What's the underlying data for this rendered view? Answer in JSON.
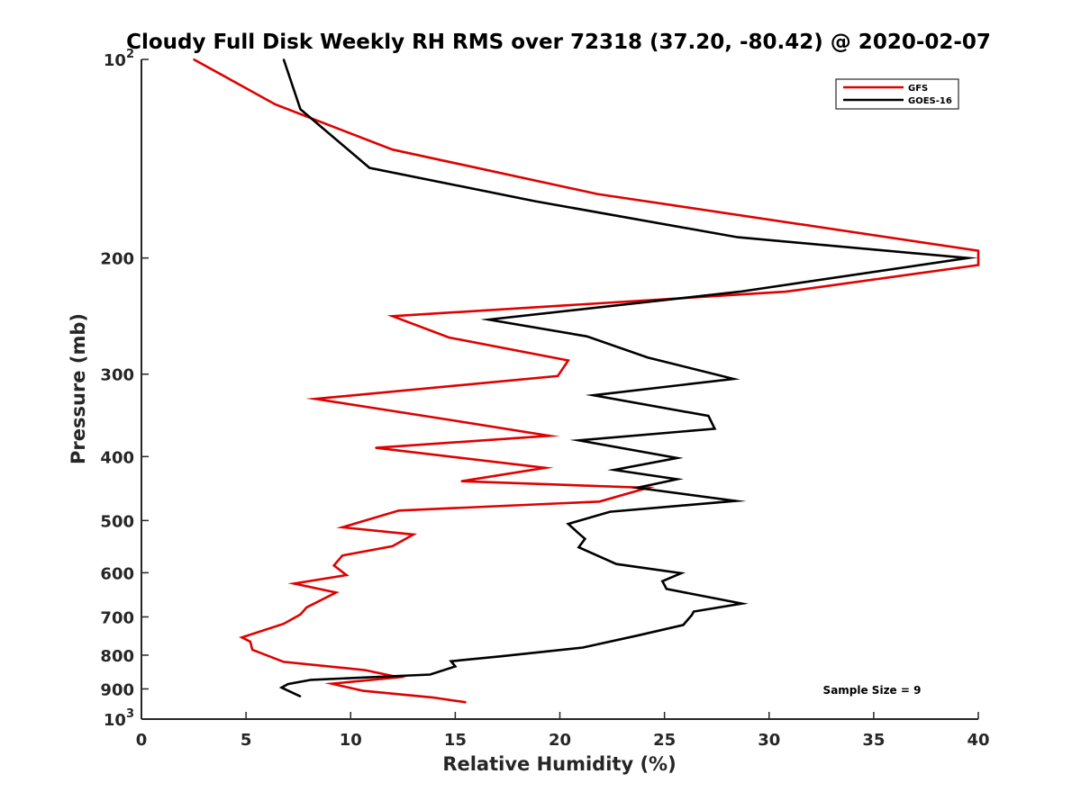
{
  "chart_data": {
    "type": "line",
    "title": "Cloudy Full Disk Weekly RH RMS over 72318 (37.20, -80.42) @ 2020-02-07",
    "xlabel": "Relative Humidity (%)",
    "ylabel": "Pressure (mb)",
    "xlim": [
      0,
      40
    ],
    "ylim": [
      100,
      1000
    ],
    "yscale": "log",
    "y_reversed": true,
    "grid": false,
    "legend_position": "top-right",
    "x_ticks": [
      "0",
      "5",
      "10",
      "15",
      "20",
      "25",
      "30",
      "35",
      "40"
    ],
    "y_ticks": [
      {
        "value": 100,
        "base": "10",
        "exp": "2"
      },
      {
        "value": 200,
        "label": "200"
      },
      {
        "value": 300,
        "label": "300"
      },
      {
        "value": 400,
        "label": "400"
      },
      {
        "value": 500,
        "label": "500"
      },
      {
        "value": 600,
        "label": "600"
      },
      {
        "value": 700,
        "label": "700"
      },
      {
        "value": 800,
        "label": "800"
      },
      {
        "value": 900,
        "label": "900"
      },
      {
        "value": 1000,
        "base": "10",
        "exp": "3"
      }
    ],
    "series": [
      {
        "name": "GFS",
        "color": "#e00000",
        "points": [
          [
            2.5,
            100
          ],
          [
            6.4,
            117
          ],
          [
            12.0,
            137
          ],
          [
            21.8,
            160
          ],
          [
            40.0,
            195
          ],
          [
            40.0,
            205
          ],
          [
            30.8,
            225
          ],
          [
            12.0,
            245
          ],
          [
            14.7,
            264
          ],
          [
            20.4,
            286
          ],
          [
            19.9,
            302
          ],
          [
            8.3,
            327
          ],
          [
            15.0,
            353
          ],
          [
            19.5,
            372
          ],
          [
            11.2,
            388
          ],
          [
            19.3,
            416
          ],
          [
            15.3,
            436
          ],
          [
            24.2,
            446
          ],
          [
            21.9,
            468
          ],
          [
            12.3,
            483
          ],
          [
            9.6,
            512
          ],
          [
            13.0,
            525
          ],
          [
            12.0,
            547
          ],
          [
            9.6,
            565
          ],
          [
            9.2,
            585
          ],
          [
            9.8,
            605
          ],
          [
            7.3,
            623
          ],
          [
            9.3,
            643
          ],
          [
            7.9,
            677
          ],
          [
            7.6,
            694
          ],
          [
            6.8,
            717
          ],
          [
            4.8,
            752
          ],
          [
            5.2,
            763
          ],
          [
            5.3,
            785
          ],
          [
            6.8,
            819
          ],
          [
            10.7,
            843
          ],
          [
            12.3,
            864
          ],
          [
            9.1,
            884
          ],
          [
            10.6,
            906
          ],
          [
            13.9,
            927
          ],
          [
            15.5,
            943
          ]
        ]
      },
      {
        "name": "GOES-16",
        "color": "#000000",
        "points": [
          [
            6.8,
            100
          ],
          [
            7.6,
            119
          ],
          [
            10.9,
            146
          ],
          [
            18.8,
            164
          ],
          [
            28.5,
            186
          ],
          [
            39.5,
            200
          ],
          [
            28.6,
            225
          ],
          [
            16.6,
            248
          ],
          [
            21.3,
            263
          ],
          [
            24.2,
            283
          ],
          [
            28.3,
            305
          ],
          [
            21.6,
            323
          ],
          [
            27.1,
            347
          ],
          [
            27.4,
            363
          ],
          [
            20.9,
            378
          ],
          [
            25.6,
            402
          ],
          [
            22.6,
            419
          ],
          [
            25.6,
            433
          ],
          [
            23.7,
            446
          ],
          [
            28.4,
            467
          ],
          [
            22.4,
            485
          ],
          [
            20.4,
            506
          ],
          [
            20.9,
            523
          ],
          [
            21.2,
            533
          ],
          [
            20.9,
            549
          ],
          [
            22.7,
            582
          ],
          [
            25.8,
            601
          ],
          [
            24.9,
            618
          ],
          [
            25.1,
            635
          ],
          [
            28.7,
            668
          ],
          [
            26.4,
            687
          ],
          [
            26.3,
            696
          ],
          [
            25.9,
            720
          ],
          [
            23.8,
            746
          ],
          [
            21.1,
            779
          ],
          [
            17.2,
            803
          ],
          [
            14.8,
            817
          ],
          [
            15.0,
            832
          ],
          [
            13.8,
            856
          ],
          [
            8.1,
            872
          ],
          [
            7.0,
            885
          ],
          [
            6.7,
            896
          ],
          [
            7.6,
            924
          ]
        ]
      }
    ],
    "annotation": "Sample Size = 9"
  }
}
